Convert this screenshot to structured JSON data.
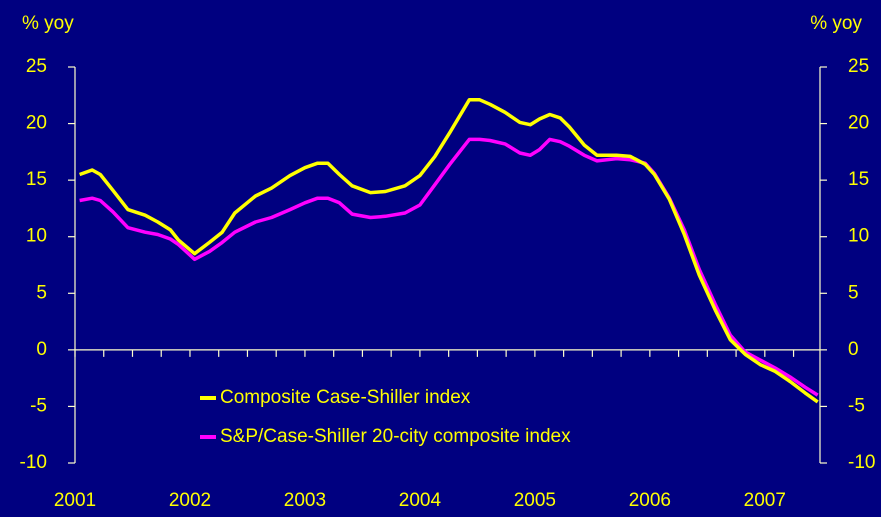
{
  "chart_data": {
    "type": "line",
    "y_label": "% yoy",
    "y2_label": "% yoy",
    "x": [
      2001.04,
      2001.15,
      2001.22,
      2001.33,
      2001.46,
      2001.61,
      2001.72,
      2001.83,
      2001.9,
      2002.04,
      2002.17,
      2002.28,
      2002.39,
      2002.57,
      2002.71,
      2002.87,
      2003.0,
      2003.11,
      2003.2,
      2003.3,
      2003.41,
      2003.57,
      2003.7,
      2003.87,
      2004.0,
      2004.13,
      2004.26,
      2004.43,
      2004.52,
      2004.61,
      2004.74,
      2004.87,
      2004.96,
      2005.04,
      2005.13,
      2005.22,
      2005.3,
      2005.43,
      2005.54,
      2005.71,
      2005.83,
      2005.96,
      2006.04,
      2006.17,
      2006.3,
      2006.43,
      2006.57,
      2006.7,
      2006.83,
      2006.96,
      2007.09,
      2007.22,
      2007.35,
      2007.46
    ],
    "series": [
      {
        "name": "Composite Case-Shiller index",
        "color": "#ffff00",
        "values": [
          15.5,
          15.9,
          15.5,
          14.1,
          12.4,
          11.9,
          11.3,
          10.6,
          9.7,
          8.5,
          9.5,
          10.4,
          12.1,
          13.6,
          14.3,
          15.4,
          16.1,
          16.5,
          16.5,
          15.5,
          14.5,
          13.9,
          14.0,
          14.5,
          15.4,
          17.1,
          19.2,
          22.1,
          22.1,
          21.7,
          21.0,
          20.1,
          19.9,
          20.4,
          20.8,
          20.5,
          19.7,
          18.1,
          17.2,
          17.2,
          17.1,
          16.4,
          15.5,
          13.3,
          10.2,
          6.6,
          3.5,
          0.9,
          -0.4,
          -1.3,
          -1.9,
          -2.8,
          -3.8,
          -4.6
        ]
      },
      {
        "name": "S&P/Case-Shiller 20-city composite index",
        "color": "#ff00ff",
        "values": [
          13.2,
          13.4,
          13.2,
          12.2,
          10.8,
          10.4,
          10.2,
          9.8,
          9.3,
          8.0,
          8.7,
          9.5,
          10.4,
          11.3,
          11.7,
          12.4,
          13.0,
          13.4,
          13.4,
          13.0,
          12.0,
          11.7,
          11.8,
          12.1,
          12.8,
          14.6,
          16.4,
          18.6,
          18.6,
          18.5,
          18.2,
          17.4,
          17.2,
          17.7,
          18.6,
          18.4,
          18.0,
          17.2,
          16.7,
          16.9,
          16.8,
          16.5,
          15.6,
          13.4,
          10.6,
          7.1,
          4.0,
          1.3,
          -0.2,
          -0.9,
          -1.6,
          -2.4,
          -3.3,
          -4.0
        ]
      }
    ],
    "xlim": [
      2001,
      2007.48
    ],
    "xticks": [
      2001,
      2002,
      2003,
      2004,
      2005,
      2006,
      2007
    ],
    "ylim": [
      -10,
      25
    ],
    "yticks": [
      -10,
      -5,
      0,
      5,
      10,
      15,
      20,
      25
    ],
    "y2lim": [
      -10,
      25
    ],
    "y2ticks": [
      -10,
      -5,
      0,
      5,
      10,
      15,
      20,
      25
    ]
  }
}
